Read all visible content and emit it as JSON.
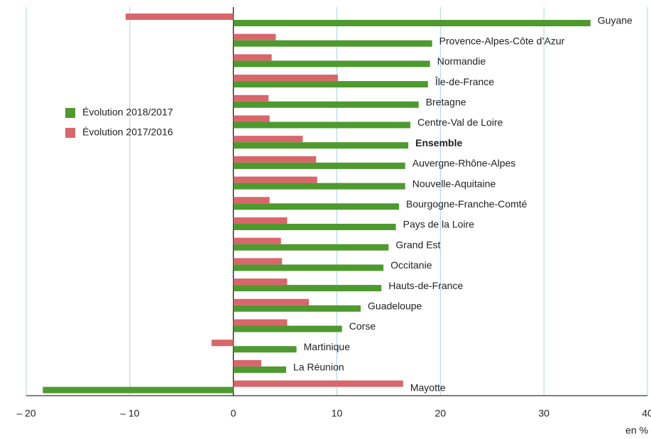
{
  "chart_data": {
    "type": "bar",
    "orientation": "horizontal",
    "categories": [
      "Guyane",
      "Provence-Alpes-Côte d’Azur",
      "Normandie",
      "Île-de-France",
      "Bretagne",
      "Centre-Val de Loire",
      "Ensemble",
      "Auvergne-Rhône-Alpes",
      "Nouvelle-Aquitaine",
      "Bourgogne-Franche-Comté",
      "Pays de la Loire",
      "Grand Est",
      "Occitanie",
      "Hauts-de-France",
      "Guadeloupe",
      "Corse",
      "Martinique",
      "La Réunion",
      "Mayotte"
    ],
    "series": [
      {
        "name": "Évolution 2017/2016",
        "color": "#d9666a",
        "values": [
          -10.4,
          4.1,
          3.7,
          10.1,
          3.4,
          3.5,
          6.7,
          8.0,
          8.1,
          3.5,
          5.2,
          4.6,
          4.7,
          5.2,
          7.3,
          5.2,
          -2.1,
          2.7,
          16.4
        ]
      },
      {
        "name": "Évolution 2018/2017",
        "color": "#4e9a2f",
        "values": [
          34.5,
          19.2,
          19.0,
          18.8,
          17.9,
          17.1,
          16.9,
          16.6,
          16.6,
          16.0,
          15.7,
          15.0,
          14.5,
          14.3,
          12.3,
          10.5,
          6.1,
          5.1,
          -18.4
        ]
      }
    ],
    "xlim": [
      -20,
      40
    ],
    "xticks": [
      {
        "value": -20,
        "label": "– 20"
      },
      {
        "value": -10,
        "label": "– 10"
      },
      0,
      10,
      20,
      30,
      40
    ],
    "xlabel": "en %",
    "grid": true
  }
}
